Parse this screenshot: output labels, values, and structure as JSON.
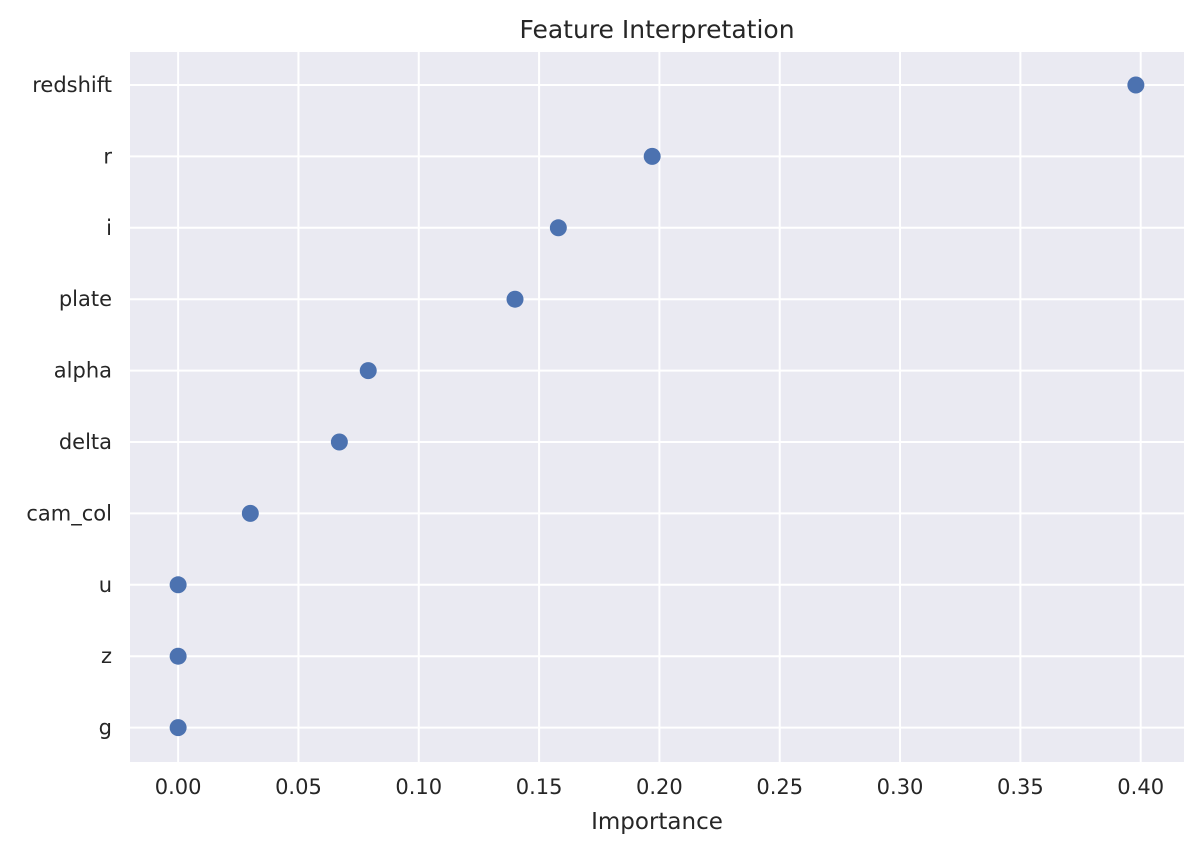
{
  "chart_data": {
    "type": "scatter",
    "title": "Feature Interpretation",
    "xlabel": "Importance",
    "ylabel": "",
    "categories": [
      "redshift",
      "r",
      "i",
      "plate",
      "alpha",
      "delta",
      "cam_col",
      "u",
      "z",
      "g"
    ],
    "values": [
      0.398,
      0.197,
      0.158,
      0.14,
      0.079,
      0.067,
      0.03,
      0.0,
      0.0,
      0.0
    ],
    "xlim": [
      -0.02,
      0.418
    ],
    "xticks": [
      "0.00",
      "0.05",
      "0.10",
      "0.15",
      "0.20",
      "0.25",
      "0.30",
      "0.35",
      "0.40"
    ],
    "xtick_values": [
      0.0,
      0.05,
      0.1,
      0.15,
      0.2,
      0.25,
      0.3,
      0.35,
      0.4
    ],
    "grid": true,
    "legend": "none",
    "colors": {
      "point": "#4c72b0",
      "plot_background": "#eaeaf2",
      "grid": "#ffffff",
      "text": "#262626"
    }
  }
}
